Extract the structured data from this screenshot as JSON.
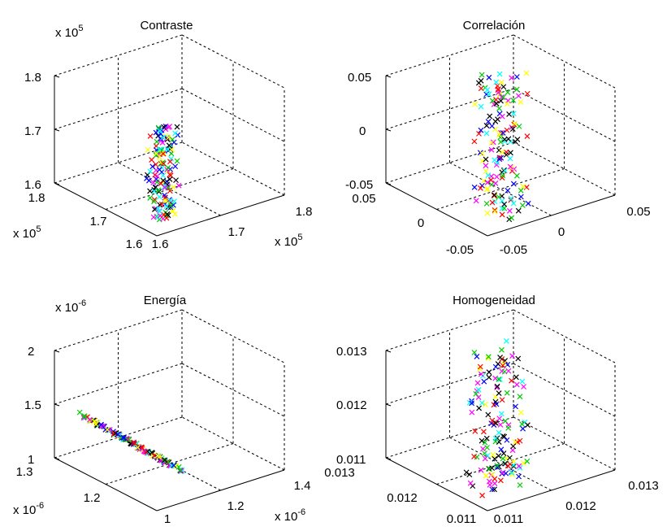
{
  "chart_data": [
    {
      "type": "scatter",
      "title": "Contraste",
      "z_exponent": "x 10",
      "z_exp_sup": "5",
      "x_exponent": "x 10",
      "x_exp_sup": "5",
      "y_exponent": "x 10",
      "y_exp_sup": "5",
      "z_ticks": [
        "1.6",
        "1.7",
        "1.8"
      ],
      "x_ticks": [
        "1.6",
        "1.7",
        "1.8"
      ],
      "y_ticks": [
        "1.6",
        "1.7",
        "1.8"
      ],
      "xlim": [
        1.6,
        1.8
      ],
      "ylim": [
        1.6,
        1.8
      ],
      "zlim": [
        1.6,
        1.8
      ],
      "grid": true,
      "cluster": {
        "x": [
          1.635,
          1.665
        ],
        "y": [
          1.635,
          1.665
        ],
        "z": [
          1.592,
          1.765
        ]
      },
      "colors": [
        "#ff0000",
        "#00cc00",
        "#0000ff",
        "#000000",
        "#ff00ff",
        "#ffff00",
        "#00ffff"
      ]
    },
    {
      "type": "scatter",
      "title": "Correlación",
      "z_ticks": [
        "-0.05",
        "0",
        "0.05"
      ],
      "x_ticks": [
        "-0.05",
        "0",
        "0.05"
      ],
      "y_ticks": [
        "-0.05",
        "0",
        "0.05"
      ],
      "xlim": [
        -0.05,
        0.05
      ],
      "ylim": [
        -0.05,
        0.05
      ],
      "zlim": [
        -0.05,
        0.05
      ],
      "grid": true,
      "cluster": {
        "x": [
          -0.013,
          0.013
        ],
        "y": [
          -0.013,
          0.013
        ],
        "z": [
          -0.075,
          0.06
        ]
      },
      "colors": [
        "#ff0000",
        "#00cc00",
        "#0000ff",
        "#000000",
        "#ff00ff",
        "#ffff00",
        "#00ffff"
      ]
    },
    {
      "type": "scatter",
      "title": "Energía",
      "z_exponent": "x 10",
      "z_exp_sup": "-6",
      "x_exponent": "x 10",
      "x_exp_sup": "-6",
      "y_exponent": "x 10",
      "y_exp_sup": "-6",
      "z_ticks": [
        "1",
        "1.5",
        "2"
      ],
      "x_ticks": [
        "1",
        "1.2",
        "1.4"
      ],
      "y_ticks": [
        "1",
        "1.2",
        "1.3"
      ],
      "xlim": [
        1.0,
        1.4
      ],
      "ylim": [
        1.1,
        1.3
      ],
      "zlim": [
        1.0,
        2.0
      ],
      "grid": true,
      "cluster": {
        "x": [
          1.04,
          1.16
        ],
        "y": [
          1.15,
          1.28
        ],
        "z": [
          1.08,
          1.45
        ]
      },
      "colors": [
        "#ff0000",
        "#00cc00",
        "#0000ff",
        "#000000",
        "#ff00ff",
        "#ffff00",
        "#00ffff"
      ]
    },
    {
      "type": "scatter",
      "title": "Homogeneidad",
      "z_ticks": [
        "0.011",
        "0.012",
        "0.013"
      ],
      "x_ticks": [
        "0.011",
        "0.012",
        "0.013"
      ],
      "y_ticks": [
        "0.011",
        "0.012",
        "0.013"
      ],
      "xlim": [
        0.011,
        0.013
      ],
      "ylim": [
        0.011,
        0.013
      ],
      "zlim": [
        0.011,
        0.013
      ],
      "grid": true,
      "cluster": {
        "x": [
          0.0115,
          0.0121
        ],
        "y": [
          0.0115,
          0.0121
        ],
        "z": [
          0.0106,
          0.0133
        ]
      },
      "colors": [
        "#ff0000",
        "#00cc00",
        "#0000ff",
        "#000000",
        "#ff00ff",
        "#ffff00",
        "#00ffff"
      ]
    }
  ]
}
